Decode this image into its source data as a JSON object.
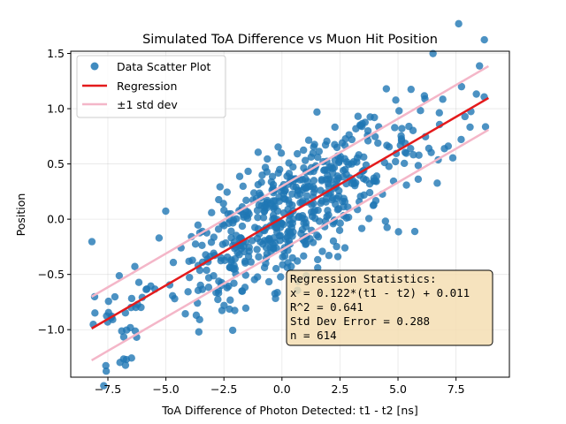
{
  "chart_data": {
    "type": "scatter",
    "title": "Simulated ToA Difference vs Muon Hit Position",
    "xlabel": "ToA Difference of Photon Detected: t1 - t2 [ns]",
    "ylabel": "Position",
    "xlim": [
      -9.1,
      9.8
    ],
    "ylim": [
      -1.43,
      1.52
    ],
    "xticks": [
      -7.5,
      -5.0,
      -2.5,
      0.0,
      2.5,
      5.0,
      7.5
    ],
    "xtick_labels": [
      "−7.5",
      "−5.0",
      "−2.5",
      "0.0",
      "2.5",
      "5.0",
      "7.5"
    ],
    "yticks": [
      -1.0,
      -0.5,
      0.0,
      0.5,
      1.0,
      1.5
    ],
    "ytick_labels": [
      "−1.0",
      "−0.5",
      "0.0",
      "0.5",
      "1.0",
      "1.5"
    ],
    "grid": true,
    "legend_position": "top-left",
    "series": [
      {
        "name": "Data Scatter Plot",
        "kind": "scatter",
        "color": "#1f77b4",
        "n": 614,
        "x_range": [
          -8.2,
          8.9
        ]
      },
      {
        "name": "Regression",
        "kind": "line",
        "color": "#e41a1c",
        "slope": 0.122,
        "intercept": 0.011,
        "x": [
          -8.2,
          8.9
        ]
      },
      {
        "name": "±1 std dev",
        "kind": "band",
        "color": "#f4b6c8",
        "offset": 0.288,
        "x": [
          -8.2,
          8.9
        ]
      }
    ],
    "stats_box": {
      "lines": [
        "Regression Statistics:",
        "x = 0.122*(t1 - t2) + 0.011",
        "R^2 = 0.641",
        "Std Dev Error = 0.288",
        "n = 614"
      ],
      "background": "#f5deb3"
    }
  }
}
